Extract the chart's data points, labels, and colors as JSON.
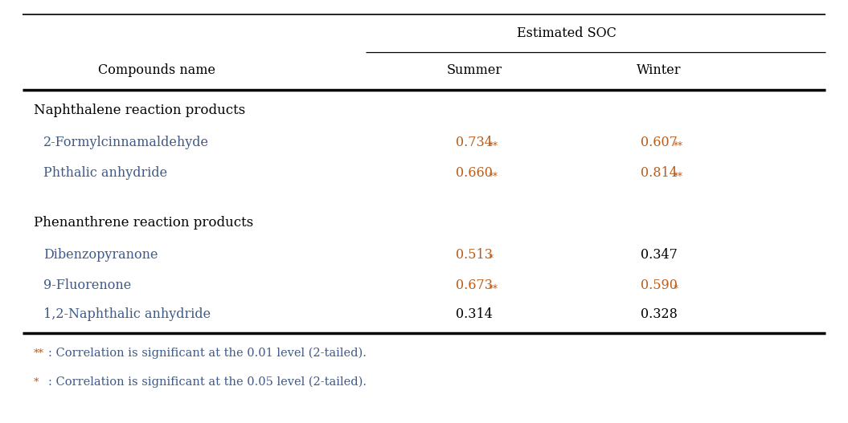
{
  "title": "Estimated SOC",
  "col_headers": [
    "Compounds name",
    "Summer",
    "Winter"
  ],
  "group1_header": "Naphthalene reaction products",
  "group1_rows": [
    [
      "2-Formylcinnamaldehyde",
      "0.734",
      "**",
      "0.607",
      "**"
    ],
    [
      "Phthalic anhydride",
      "0.660",
      "**",
      "0.814",
      "**"
    ]
  ],
  "group2_header": "Phenanthrene reaction products",
  "group2_rows": [
    [
      "Dibenzopyranone",
      "0.513",
      "*",
      "0.347",
      ""
    ],
    [
      "9-Fluorenone",
      "0.673",
      "**",
      "0.590",
      "*"
    ],
    [
      "1,2-Naphthalic anhydride",
      "0.314",
      "",
      "0.328",
      ""
    ]
  ],
  "bg_color": "#ffffff",
  "text_color": "#000000",
  "blue_color": "#3d5a8a",
  "orange_color": "#b85c1a",
  "header_fontsize": 11.5,
  "body_fontsize": 11.5,
  "group_fontsize": 12.0,
  "footnote_fontsize": 10.5
}
